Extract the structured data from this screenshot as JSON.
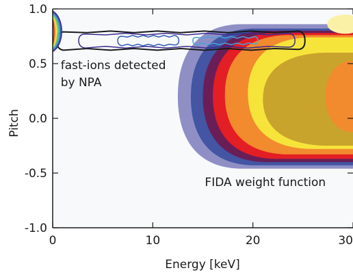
{
  "chart_data": {
    "type": "contour",
    "title": "",
    "xlabel": "Energy [keV]",
    "ylabel": "Pitch",
    "xlim": [
      0,
      30
    ],
    "ylim": [
      -1.0,
      1.0
    ],
    "x_ticks": [
      {
        "value": 0,
        "label": "0"
      },
      {
        "value": 10,
        "label": "10"
      },
      {
        "value": 20,
        "label": "20"
      },
      {
        "value": 30,
        "label": "30"
      }
    ],
    "y_ticks": [
      {
        "value": 1.0,
        "label": "1.0"
      },
      {
        "value": 0.5,
        "label": "0.5"
      },
      {
        "value": 0.0,
        "label": "0.0"
      },
      {
        "value": -0.5,
        "label": "-0.5"
      },
      {
        "value": -1.0,
        "label": "-1.0"
      }
    ],
    "grid": false,
    "series": [
      {
        "kind": "filled-contours",
        "levels": [
          {
            "rank": 1,
            "color": "#8f8fc6",
            "tip_energy": 12.5,
            "pitch_top": 0.86,
            "pitch_bottom": -0.46
          },
          {
            "rank": 2,
            "color": "#4355a3",
            "tip_energy": 13.8,
            "pitch_top": 0.82,
            "pitch_bottom": -0.43
          },
          {
            "rank": 3,
            "color": "#6a1e57",
            "tip_energy": 15.0,
            "pitch_top": 0.8,
            "pitch_bottom": -0.4
          },
          {
            "rank": 4,
            "color": "#e31e24",
            "tip_energy": 16.0,
            "pitch_top": 0.78,
            "pitch_bottom": -0.37
          },
          {
            "rank": 5,
            "color": "#f28a2e",
            "tip_energy": 17.2,
            "pitch_top": 0.76,
            "pitch_bottom": -0.33
          },
          {
            "rank": 6,
            "color": "#f7e43b",
            "tip_energy": 19.5,
            "pitch_top": 0.74,
            "pitch_bottom": -0.28
          },
          {
            "rank": 7,
            "color": "#c9a42c",
            "tip_energy": 21.0,
            "pitch_top": 0.6,
            "pitch_bottom": -0.25
          }
        ]
      },
      {
        "kind": "line-contours",
        "contours": [
          {
            "color": "#1a1a1a",
            "energy": [
              0.4,
              25.2
            ],
            "pitch": [
              0.63,
              0.79
            ]
          },
          {
            "color": "#3b2a8a",
            "energy": [
              2.6,
              24.2
            ],
            "pitch": [
              0.65,
              0.77
            ]
          },
          {
            "color": "#2f5bb6",
            "energy": [
              6.5,
              12.6
            ],
            "pitch": [
              0.67,
              0.75
            ]
          },
          {
            "color": "#4fa0d8",
            "energy": [
              14.0,
              20.5
            ],
            "pitch": [
              0.68,
              0.74
            ]
          }
        ]
      },
      {
        "kind": "edge-peak",
        "energy": [
          0,
          1.2
        ],
        "pitch": [
          0.61,
          0.98
        ],
        "colors": [
          "#3b2a8a",
          "#2f5bb6",
          "#4fa0d8",
          "#55c07a",
          "#b6d94a",
          "#f7e43b",
          "#f28a2e",
          "#e31e24"
        ]
      }
    ],
    "annotations": [
      {
        "lines": [
          "fast-ions detected",
          "by NPA"
        ],
        "energy": 0.8,
        "pitch": 0.45
      },
      {
        "lines": [
          "FIDA weight function"
        ],
        "energy": 15.2,
        "pitch": -0.62
      }
    ]
  }
}
